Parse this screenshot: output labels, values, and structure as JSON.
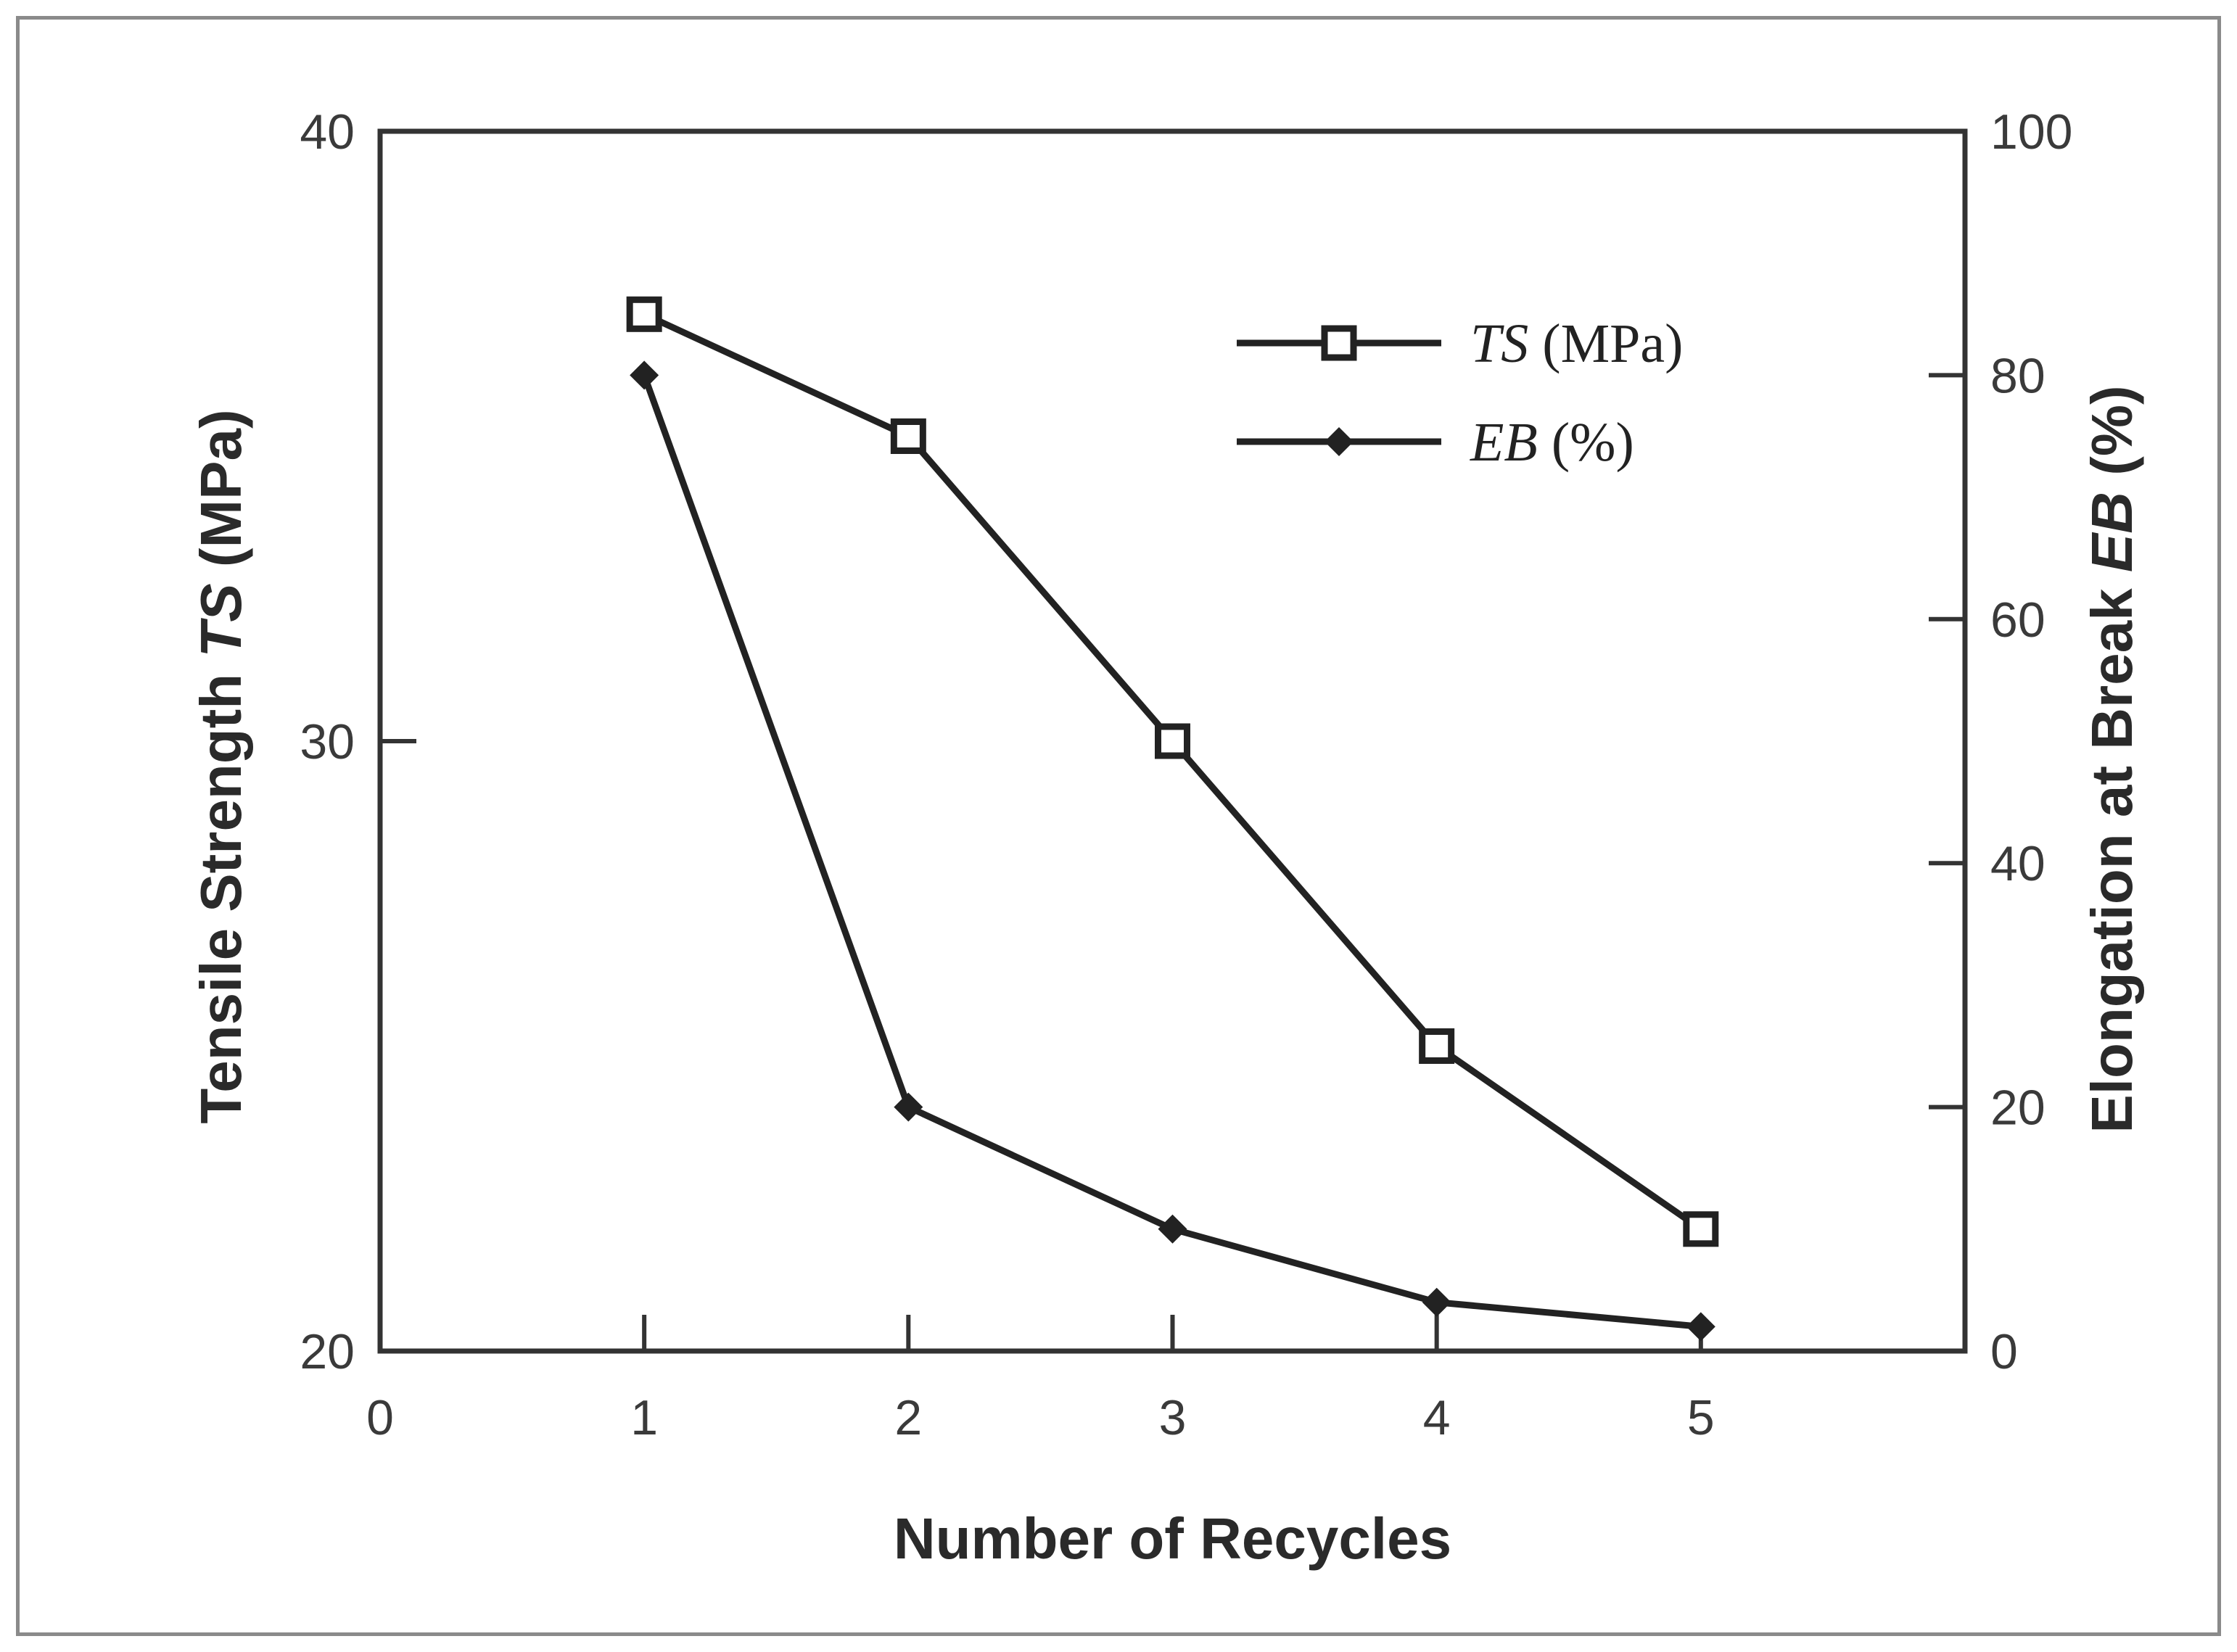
{
  "chart_data": {
    "type": "line",
    "x": [
      1,
      2,
      3,
      4,
      5
    ],
    "xlim": [
      0,
      6
    ],
    "x_ticks": [
      "0",
      "1",
      "2",
      "3",
      "4",
      "5"
    ],
    "xlabel": "Number of Recycles",
    "ylabel": {
      "prefix": "Tensile Strength ",
      "var": "TS",
      "suffix": " (MPa)"
    },
    "ylim": [
      20,
      40
    ],
    "y_ticks": [
      "20",
      "30",
      "40"
    ],
    "y2label": {
      "prefix": "Elongation at Break ",
      "var": "EB",
      "suffix": " (%)"
    },
    "y2lim": [
      0,
      100
    ],
    "y2_ticks": [
      "0",
      "20",
      "40",
      "60",
      "80",
      "100"
    ],
    "grid": false,
    "legend_position": "top-right",
    "series": [
      {
        "name_var": "TS",
        "name_unit": " (MPa)",
        "axis": "left",
        "marker": "open-square",
        "values": [
          37.0,
          35.0,
          30.0,
          25.0,
          22.0
        ]
      },
      {
        "name_var": "EB",
        "name_unit": " (%)",
        "axis": "right",
        "marker": "filled-diamond",
        "values": [
          80,
          20,
          10,
          4,
          2
        ]
      }
    ],
    "colors": {
      "line": "#222222",
      "axis": "#333333",
      "frame": "#8a8a8a"
    }
  }
}
